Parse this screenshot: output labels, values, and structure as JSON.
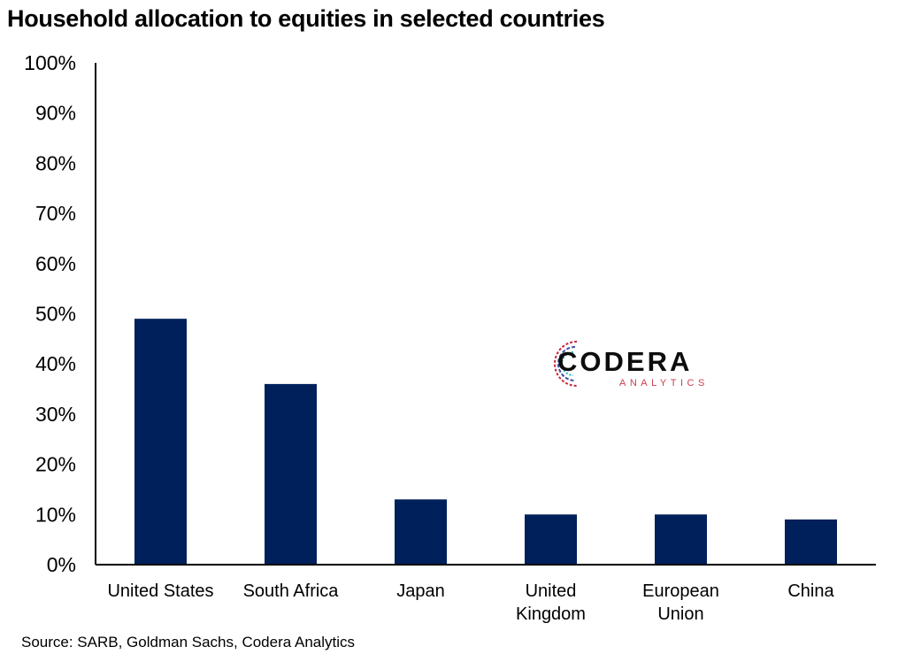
{
  "chart_data": {
    "type": "bar",
    "title": "Household allocation to equities in selected countries",
    "categories": [
      [
        "United States"
      ],
      [
        "South Africa"
      ],
      [
        "Japan"
      ],
      [
        "United",
        "Kingdom"
      ],
      [
        "European",
        "Union"
      ],
      [
        "China"
      ]
    ],
    "values": [
      49,
      36,
      13,
      10,
      10,
      9
    ],
    "ylim": [
      0,
      100
    ],
    "yticks": [
      "0%",
      "10%",
      "20%",
      "30%",
      "40%",
      "50%",
      "60%",
      "70%",
      "80%",
      "90%",
      "100%"
    ],
    "bar_color": "#00205b",
    "grid": false,
    "source": "Source: SARB, Goldman Sachs, Codera Analytics"
  },
  "logo": {
    "word": "CODERA",
    "sub": "ANALYTICS"
  }
}
